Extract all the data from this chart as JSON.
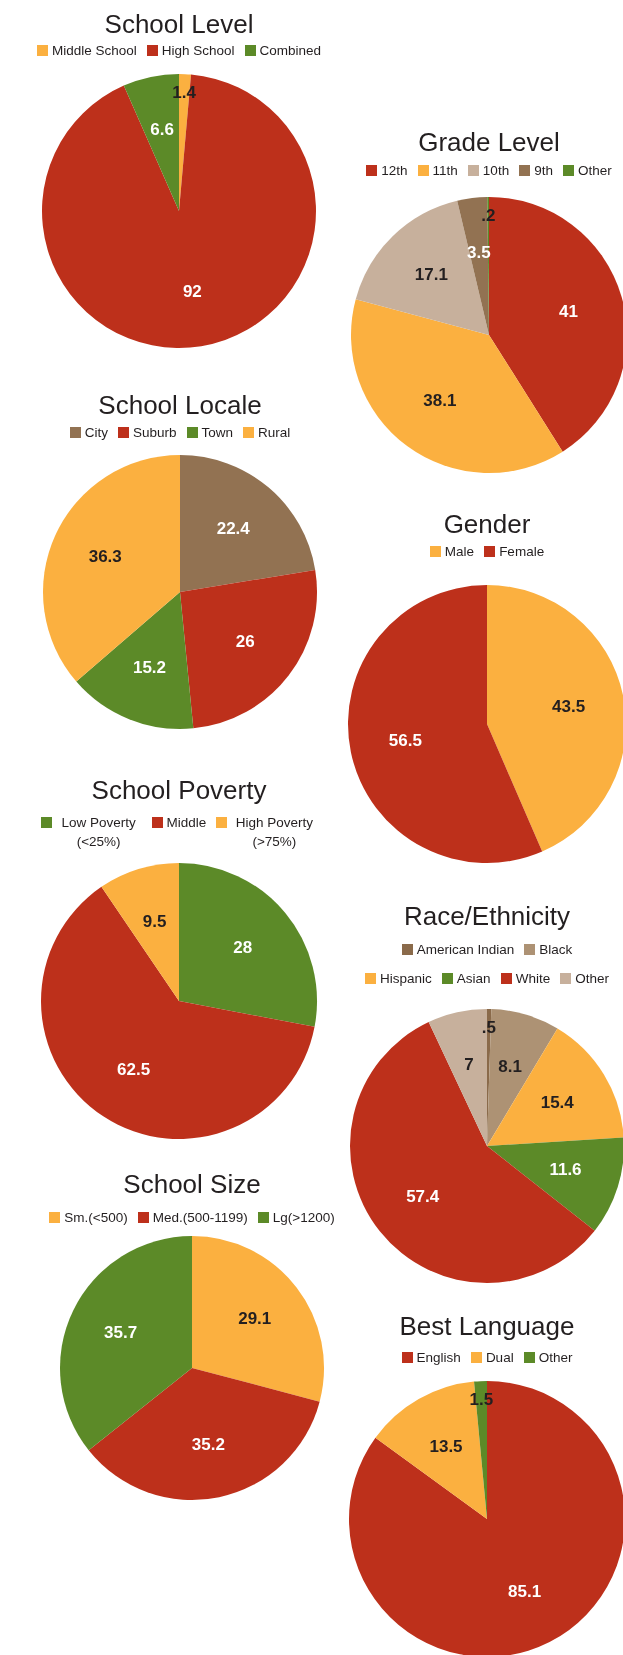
{
  "chart_data": [
    {
      "type": "pie",
      "title": "School Level",
      "categories": [
        "Middle School",
        "High School",
        "Combined"
      ],
      "values": [
        1.4,
        92,
        6.6
      ],
      "colors": [
        "#fbb040",
        "#bd301b",
        "#5c8a28"
      ],
      "legend": "top",
      "data_labels": true
    },
    {
      "type": "pie",
      "title": "Grade Level",
      "categories": [
        "12th",
        "11th",
        "10th",
        "9th",
        "Other"
      ],
      "values": [
        41,
        38.1,
        17.1,
        3.5,
        0.2
      ],
      "colors": [
        "#bd301b",
        "#fbb040",
        "#c7b09c",
        "#927252",
        "#5c8a28"
      ],
      "legend": "top",
      "value_labels": [
        "41",
        "38.1",
        "17.1",
        "3.5",
        ".2"
      ]
    },
    {
      "type": "pie",
      "title": "School Locale",
      "categories": [
        "City",
        "Suburb",
        "Town",
        "Rural"
      ],
      "values": [
        22.4,
        26,
        15.2,
        36.3
      ],
      "colors": [
        "#927252",
        "#bd301b",
        "#5c8a28",
        "#fbb040"
      ],
      "legend": "top",
      "data_labels": true
    },
    {
      "type": "pie",
      "title": "Gender",
      "categories": [
        "Male",
        "Female"
      ],
      "values": [
        43.5,
        56.5
      ],
      "colors": [
        "#fbb040",
        "#bd301b"
      ],
      "legend": "top",
      "data_labels": true
    },
    {
      "type": "pie",
      "title": "School Poverty",
      "categories": [
        "Low Poverty (<25%)",
        "Middle",
        "High Poverty (>75%)"
      ],
      "values": [
        28,
        62.5,
        9.5
      ],
      "colors": [
        "#5c8a28",
        "#bd301b",
        "#fbb040"
      ],
      "legend": "top",
      "data_labels": true
    },
    {
      "type": "pie",
      "title": "Race/Ethnicity",
      "categories": [
        "American Indian",
        "Black",
        "Hispanic",
        "Asian",
        "White",
        "Other"
      ],
      "values": [
        0.5,
        8.1,
        15.4,
        11.6,
        57.4,
        7
      ],
      "colors": [
        "#8a6a4a",
        "#ad9274",
        "#fbb040",
        "#5c8a28",
        "#bd301b",
        "#c7b09c"
      ],
      "legend": "top",
      "value_labels": [
        ".5",
        "8.1",
        "15.4",
        "11.6",
        "57.4",
        "7"
      ]
    },
    {
      "type": "pie",
      "title": "School Size",
      "categories": [
        "Sm.(<500)",
        "Med.(500-1199)",
        "Lg(>1200)"
      ],
      "values": [
        29.1,
        35.2,
        35.7
      ],
      "colors": [
        "#fbb040",
        "#bd301b",
        "#5c8a28"
      ],
      "legend": "top",
      "data_labels": true
    },
    {
      "type": "pie",
      "title": "Best Language",
      "categories": [
        "English",
        "Dual",
        "Other"
      ],
      "values": [
        85.1,
        13.5,
        1.5
      ],
      "colors": [
        "#bd301b",
        "#fbb040",
        "#5c8a28"
      ],
      "legend": "top",
      "data_labels": true
    }
  ]
}
